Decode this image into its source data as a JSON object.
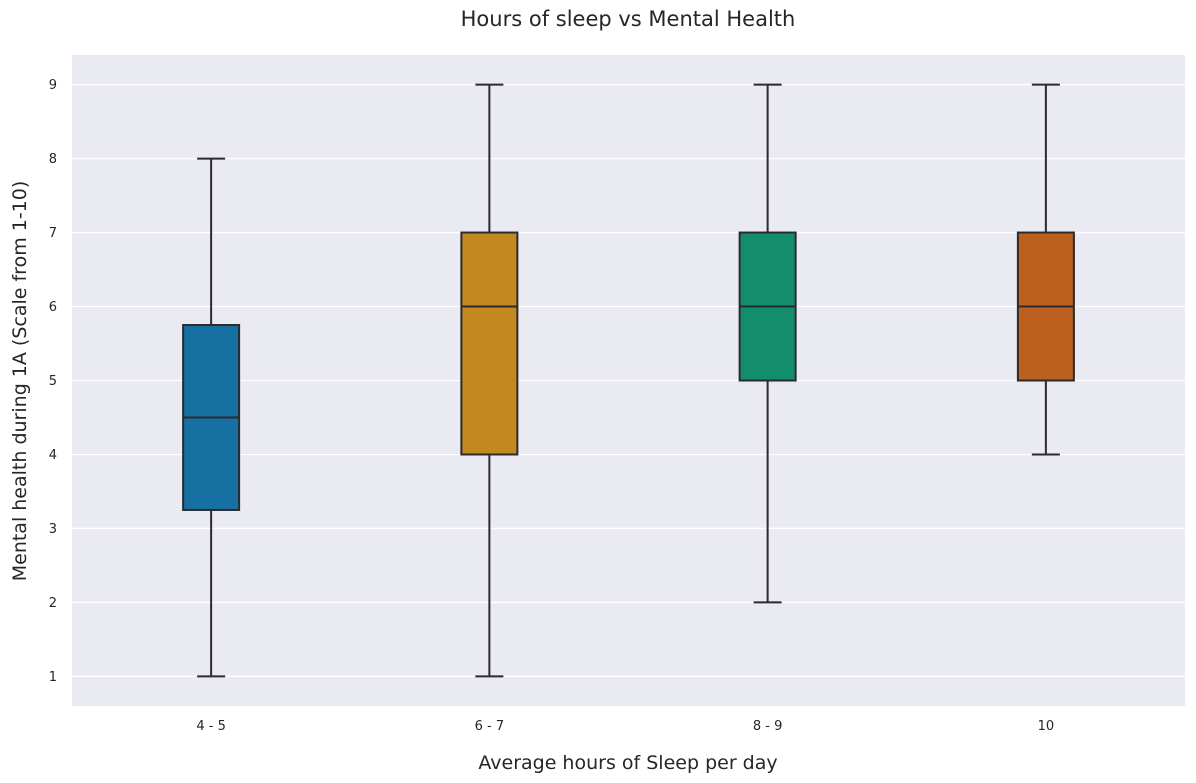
{
  "chart_data": {
    "type": "box",
    "title": "Hours of sleep vs Mental Health",
    "xlabel": "Average hours of Sleep per day",
    "ylabel": "Mental health during 1A (Scale from 1-10)",
    "categories": [
      "4 - 5",
      "6 - 7",
      "8 - 9",
      "10"
    ],
    "boxes": [
      {
        "min": 1,
        "q1": 3.25,
        "median": 4.5,
        "q3": 5.75,
        "max": 8,
        "color": "#1770a2"
      },
      {
        "min": 1,
        "q1": 4,
        "median": 6,
        "q3": 7,
        "max": 9,
        "color": "#c38920"
      },
      {
        "min": 2,
        "q1": 5,
        "median": 6,
        "q3": 7,
        "max": 9,
        "color": "#138e6c"
      },
      {
        "min": 4,
        "q1": 5,
        "median": 6,
        "q3": 7,
        "max": 9,
        "color": "#bb601e"
      }
    ],
    "yticks": [
      1,
      2,
      3,
      4,
      5,
      6,
      7,
      8,
      9
    ],
    "ylim": [
      0.6,
      9.4
    ],
    "grid": true,
    "background": "#eaeaf2"
  }
}
